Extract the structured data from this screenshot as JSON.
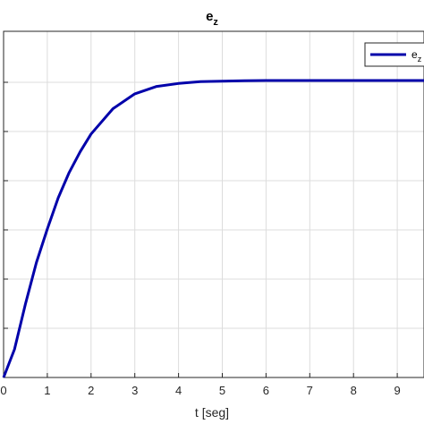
{
  "chart_data": {
    "type": "line",
    "title": "e",
    "title_subscript": "z",
    "xlabel": "t [seg]",
    "ylabel": "",
    "xlim": [
      0,
      10
    ],
    "ylim": [
      0,
      1.2
    ],
    "x_ticks": [
      "0",
      "1",
      "2",
      "3",
      "4",
      "5",
      "6",
      "7",
      "8",
      "9"
    ],
    "grid": true,
    "legend_placement": "top-right",
    "series": [
      {
        "name": "e",
        "name_subscript": "z",
        "color": "#0000aa",
        "x": [
          0,
          0.25,
          0.5,
          0.75,
          1,
          1.25,
          1.5,
          1.75,
          2,
          2.5,
          3,
          3.5,
          4,
          4.5,
          5,
          5.5,
          6,
          6.5,
          7,
          7.5,
          8,
          8.5,
          9,
          9.5,
          10
        ],
        "y": [
          0,
          0.095,
          0.247,
          0.387,
          0.5,
          0.605,
          0.69,
          0.76,
          0.82,
          0.905,
          0.955,
          0.98,
          0.99,
          0.996,
          0.998,
          0.999,
          1.0,
          1.0,
          1.0,
          1.0,
          1.0,
          1.0,
          1.0,
          1.0,
          1.0
        ]
      }
    ]
  }
}
